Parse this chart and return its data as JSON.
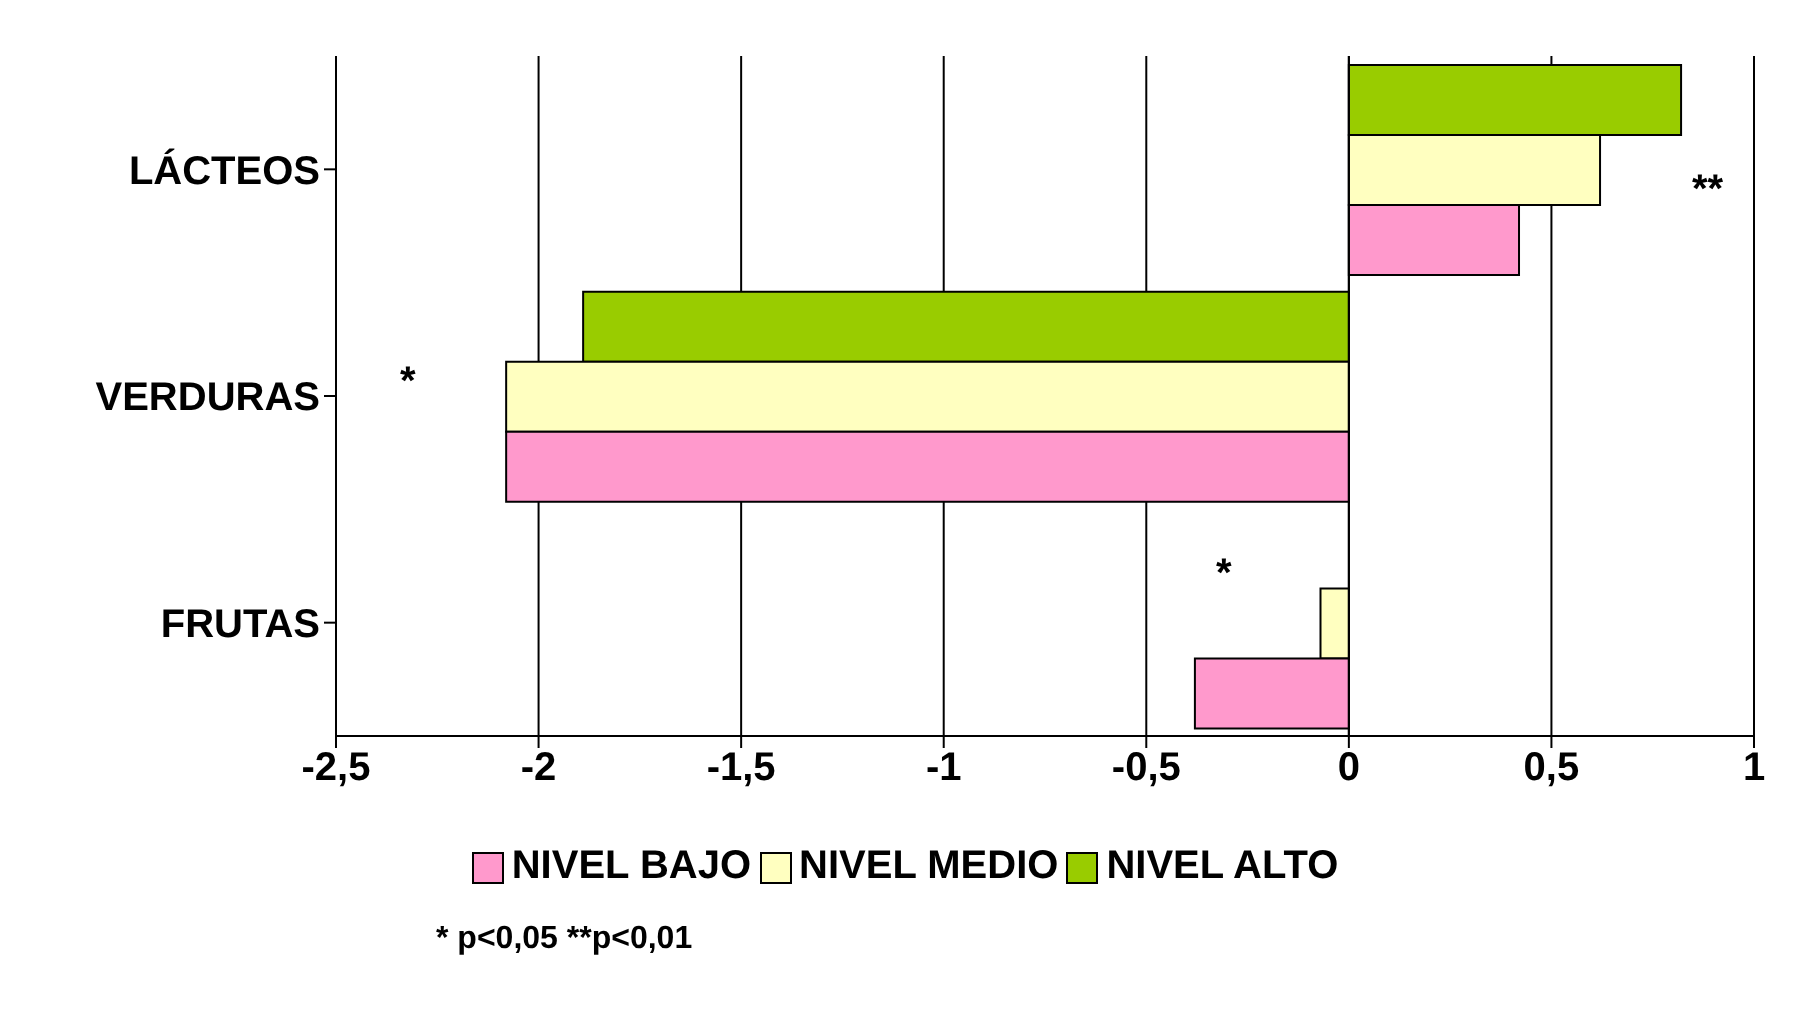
{
  "chart_data": {
    "type": "bar",
    "orientation": "horizontal",
    "categories": [
      "LÁCTEOS",
      "VERDURAS",
      "FRUTAS"
    ],
    "series": [
      {
        "name": "NIVEL BAJO",
        "color": "#ff99cc",
        "values": [
          0.42,
          -2.08,
          -0.38
        ]
      },
      {
        "name": "NIVEL MEDIO",
        "color": "#ffffc0",
        "values": [
          0.62,
          -2.08,
          -0.07
        ]
      },
      {
        "name": "NIVEL ALTO",
        "color": "#99cc00",
        "values": [
          0.82,
          -1.89,
          0
        ]
      }
    ],
    "xlim": [
      -2.5,
      1
    ],
    "xticks": [
      {
        "value": -2.5,
        "label": "-2,5"
      },
      -2,
      {
        "value": -1.5,
        "label": "-1,5"
      },
      -1,
      {
        "value": -0.5,
        "label": "-0,5"
      },
      0,
      {
        "value": 0.5,
        "label": "0,5"
      },
      1
    ],
    "grid": "x",
    "legend": "bottom",
    "annotations": [
      "**",
      "*",
      "*",
      "* p<0,05  **p<0,01"
    ]
  }
}
